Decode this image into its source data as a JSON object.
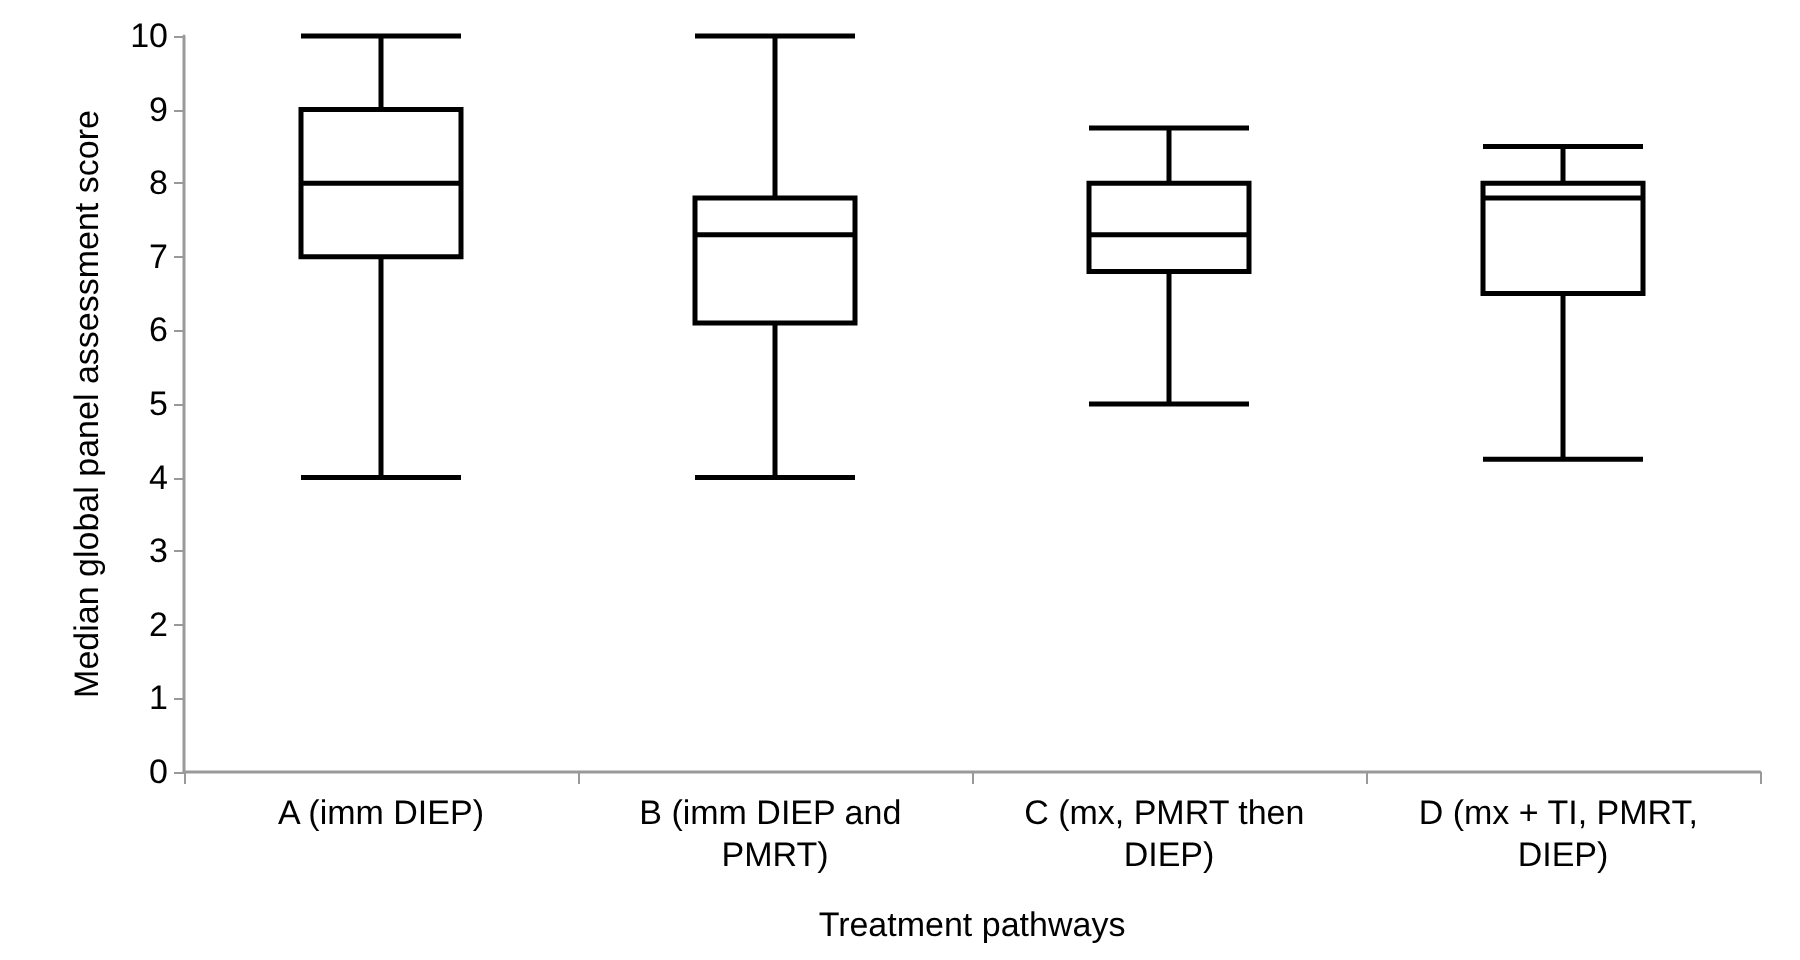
{
  "chart_data": {
    "type": "box",
    "xlabel": "Treatment pathways",
    "ylabel": "Median global panel assessment score",
    "categories": [
      "A (imm DIEP)",
      "B (imm DIEP and PMRT)",
      "C (mx, PMRT then DIEP)",
      "D (mx + TI, PMRT, DIEP)"
    ],
    "boxes": [
      {
        "low": 4,
        "q1": 7,
        "median": 8,
        "q3": 9,
        "high": 10
      },
      {
        "low": 4,
        "q1": 6.1,
        "median": 7.3,
        "q3": 7.8,
        "high": 10
      },
      {
        "low": 5,
        "q1": 6.8,
        "median": 7.3,
        "q3": 8,
        "high": 8.75
      },
      {
        "low": 4.25,
        "q1": 6.5,
        "median": 7.8,
        "q3": 8,
        "high": 8.5
      }
    ],
    "ylim": [
      0,
      10
    ],
    "yticks": [
      0,
      1,
      2,
      3,
      4,
      5,
      6,
      7,
      8,
      9,
      10
    ],
    "grid": false
  }
}
